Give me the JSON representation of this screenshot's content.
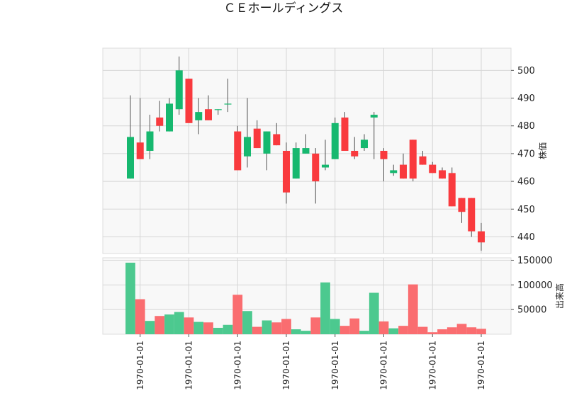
{
  "chart_data": {
    "type": "candlestick",
    "title": "ＣＥホールディングス",
    "price_axis_label": "株価",
    "volume_axis_label": "出来高",
    "price_ylim": [
      434,
      508
    ],
    "volume_ylim": [
      0,
      155000
    ],
    "price_ticks": [
      500,
      490,
      480,
      470,
      460,
      450,
      440
    ],
    "volume_ticks": [
      150000,
      100000,
      50000
    ],
    "x_tick_labels": [
      "1970-01-01",
      "1970-01-01",
      "1970-01-01",
      "1970-01-01",
      "1970-01-01",
      "1970-01-01",
      "1970-01-01",
      "1970-01-01"
    ],
    "x_tick_indices": [
      1,
      6,
      11,
      16,
      21,
      26,
      31,
      36
    ],
    "grid": true,
    "colors": {
      "up": "#16b86f",
      "down": "#f93a3e",
      "up_volume": "#4cc98f",
      "down_volume": "#fa6d70",
      "wick": "#555555",
      "plot_background": "#f8f8f8",
      "grid": "#d6d6d6"
    },
    "candles": [
      {
        "o": 461,
        "h": 491,
        "l": 461,
        "c": 476,
        "v": 145000
      },
      {
        "o": 474,
        "h": 490,
        "l": 468,
        "c": 468,
        "v": 71000
      },
      {
        "o": 471,
        "h": 484,
        "l": 468,
        "c": 478,
        "v": 27000
      },
      {
        "o": 483,
        "h": 489,
        "l": 478,
        "c": 480,
        "v": 37000
      },
      {
        "o": 478,
        "h": 490,
        "l": 478,
        "c": 488,
        "v": 40000
      },
      {
        "o": 486,
        "h": 505,
        "l": 484,
        "c": 500,
        "v": 45000
      },
      {
        "o": 497,
        "h": 497,
        "l": 481,
        "c": 481,
        "v": 34000
      },
      {
        "o": 482,
        "h": 490,
        "l": 477,
        "c": 485,
        "v": 25000
      },
      {
        "o": 486,
        "h": 491,
        "l": 482,
        "c": 482,
        "v": 24000
      },
      {
        "o": 486,
        "h": 486,
        "l": 484,
        "c": 486,
        "v": 13000
      },
      {
        "o": 488,
        "h": 497,
        "l": 485,
        "c": 488,
        "v": 19000
      },
      {
        "o": 478,
        "h": 480,
        "l": 464,
        "c": 464,
        "v": 80000
      },
      {
        "o": 469,
        "h": 490,
        "l": 465,
        "c": 476,
        "v": 47000
      },
      {
        "o": 479,
        "h": 482,
        "l": 472,
        "c": 472,
        "v": 15000
      },
      {
        "o": 470,
        "h": 478,
        "l": 464,
        "c": 478,
        "v": 28000
      },
      {
        "o": 477,
        "h": 481,
        "l": 473,
        "c": 473,
        "v": 24000
      },
      {
        "o": 471,
        "h": 474,
        "l": 452,
        "c": 456,
        "v": 31000
      },
      {
        "o": 461,
        "h": 474,
        "l": 461,
        "c": 472,
        "v": 10000
      },
      {
        "o": 470,
        "h": 477,
        "l": 470,
        "c": 472,
        "v": 7000
      },
      {
        "o": 470,
        "h": 472,
        "l": 452,
        "c": 460,
        "v": 34000
      },
      {
        "o": 465,
        "h": 475,
        "l": 464,
        "c": 466,
        "v": 105000
      },
      {
        "o": 468,
        "h": 483,
        "l": 468,
        "c": 481,
        "v": 31000
      },
      {
        "o": 483,
        "h": 485,
        "l": 471,
        "c": 471,
        "v": 17000
      },
      {
        "o": 471,
        "h": 476,
        "l": 468,
        "c": 469,
        "v": 32000
      },
      {
        "o": 472,
        "h": 477,
        "l": 471,
        "c": 475,
        "v": 7000
      },
      {
        "o": 483,
        "h": 485,
        "l": 468,
        "c": 484,
        "v": 84000
      },
      {
        "o": 471,
        "h": 472,
        "l": 460,
        "c": 468,
        "v": 26000
      },
      {
        "o": 463,
        "h": 466,
        "l": 462,
        "c": 464,
        "v": 12000
      },
      {
        "o": 466,
        "h": 470,
        "l": 461,
        "c": 461,
        "v": 17000
      },
      {
        "o": 475,
        "h": 475,
        "l": 460,
        "c": 461,
        "v": 101000
      },
      {
        "o": 469,
        "h": 471,
        "l": 466,
        "c": 466,
        "v": 15000
      },
      {
        "o": 466,
        "h": 467,
        "l": 463,
        "c": 463,
        "v": 4000
      },
      {
        "o": 464,
        "h": 465,
        "l": 461,
        "c": 461,
        "v": 10000
      },
      {
        "o": 463,
        "h": 465,
        "l": 451,
        "c": 451,
        "v": 14000
      },
      {
        "o": 454,
        "h": 454,
        "l": 445,
        "c": 449,
        "v": 21000
      },
      {
        "o": 454,
        "h": 454,
        "l": 440,
        "c": 442,
        "v": 14000
      },
      {
        "o": 442,
        "h": 445,
        "l": 435,
        "c": 438,
        "v": 11000
      }
    ]
  }
}
